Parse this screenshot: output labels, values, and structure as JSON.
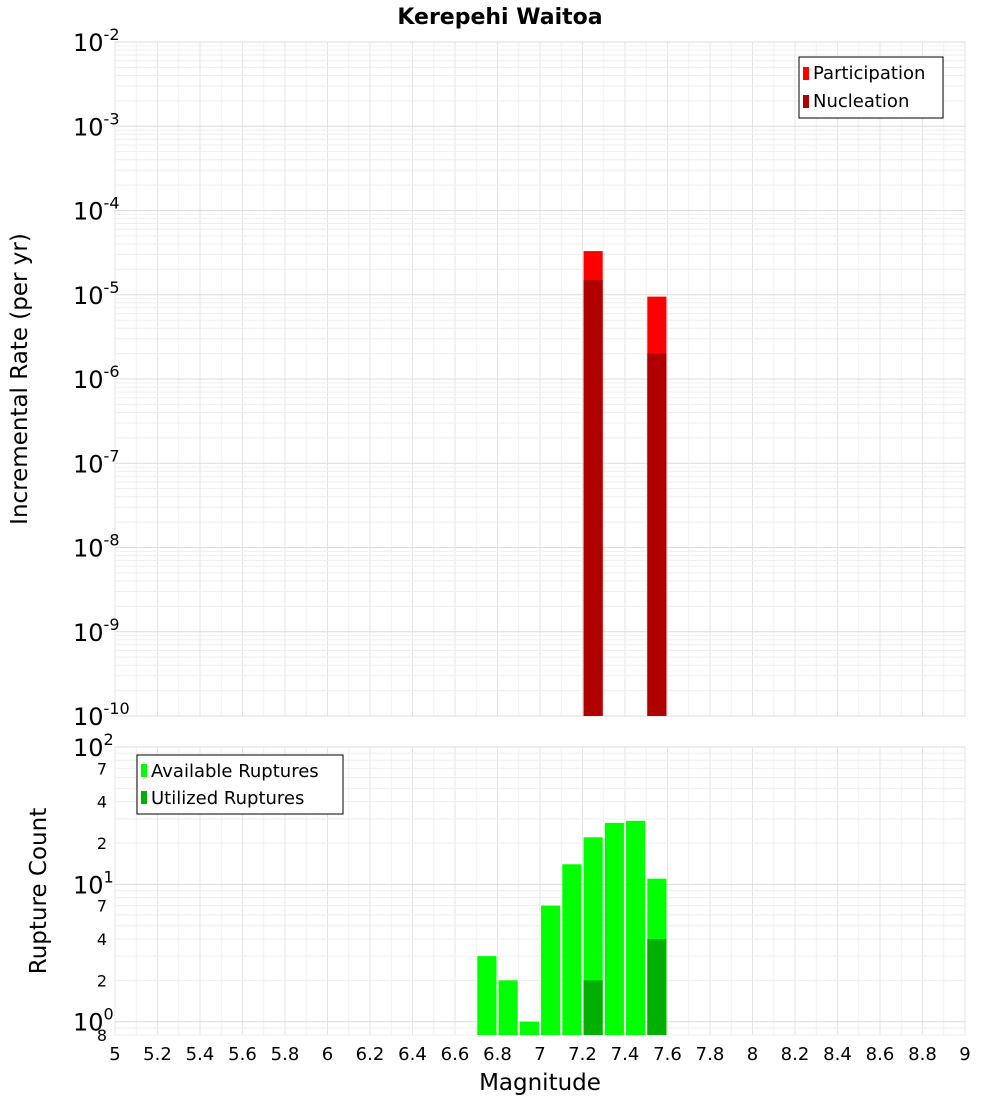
{
  "title": "Kerepehi Waitoa",
  "xlabel": "Magnitude",
  "x_ticks": [
    "5",
    "5.2",
    "5.4",
    "5.6",
    "5.8",
    "6",
    "6.2",
    "6.4",
    "6.6",
    "6.8",
    "7",
    "7.2",
    "7.4",
    "7.6",
    "7.8",
    "8",
    "8.2",
    "8.4",
    "8.6",
    "8.8",
    "9"
  ],
  "colors": {
    "participation": "#ff0000",
    "nucleation": "#b00000",
    "available": "#00ff00",
    "utilized": "#00b000"
  },
  "chart_data": [
    {
      "type": "bar",
      "title": "Kerepehi Waitoa",
      "xlabel": "Magnitude",
      "ylabel": "Incremental Rate (per yr)",
      "y_scale": "log",
      "xlim": [
        5,
        9
      ],
      "ylim": [
        1e-10,
        0.01
      ],
      "bar_width": 0.09,
      "y_ticks": [
        {
          "base": "10",
          "exp": "-2"
        },
        {
          "base": "10",
          "exp": "-3"
        },
        {
          "base": "10",
          "exp": "-4"
        },
        {
          "base": "10",
          "exp": "-5"
        },
        {
          "base": "10",
          "exp": "-6"
        },
        {
          "base": "10",
          "exp": "-7"
        },
        {
          "base": "10",
          "exp": "-8"
        },
        {
          "base": "10",
          "exp": "-9"
        },
        {
          "base": "10",
          "exp": "-10"
        }
      ],
      "legend_position": "top-right",
      "series": [
        {
          "name": "Participation",
          "x": [
            7.25,
            7.55
          ],
          "values": [
            3.3e-05,
            9.5e-06
          ]
        },
        {
          "name": "Nucleation",
          "x": [
            7.25,
            7.55
          ],
          "values": [
            1.5e-05,
            2e-06
          ]
        }
      ]
    },
    {
      "type": "bar",
      "xlabel": "Magnitude",
      "ylabel": "Rupture Count",
      "y_scale": "log",
      "xlim": [
        5,
        9
      ],
      "ylim": [
        0.8,
        100
      ],
      "bar_width": 0.09,
      "y_ticks": [
        {
          "value": 100,
          "base": "10",
          "exp": "2",
          "major": true
        },
        {
          "value": 70,
          "label": "7",
          "major": false
        },
        {
          "value": 40,
          "label": "4",
          "major": false
        },
        {
          "value": 20,
          "label": "2",
          "major": false
        },
        {
          "value": 10,
          "base": "10",
          "exp": "1",
          "major": true
        },
        {
          "value": 7,
          "label": "7",
          "major": false
        },
        {
          "value": 4,
          "label": "4",
          "major": false
        },
        {
          "value": 2,
          "label": "2",
          "major": false
        },
        {
          "value": 1,
          "base": "10",
          "exp": "0",
          "major": true
        },
        {
          "value": 0.8,
          "label": "8",
          "major": false
        }
      ],
      "legend_position": "top-left",
      "series": [
        {
          "name": "Available Ruptures",
          "x": [
            6.75,
            6.85,
            6.95,
            7.05,
            7.15,
            7.25,
            7.35,
            7.45,
            7.55
          ],
          "values": [
            3,
            2,
            1,
            7,
            14,
            22,
            28,
            29,
            11
          ]
        },
        {
          "name": "Utilized Ruptures",
          "x": [
            7.25,
            7.55
          ],
          "values": [
            2,
            4
          ]
        }
      ]
    }
  ]
}
